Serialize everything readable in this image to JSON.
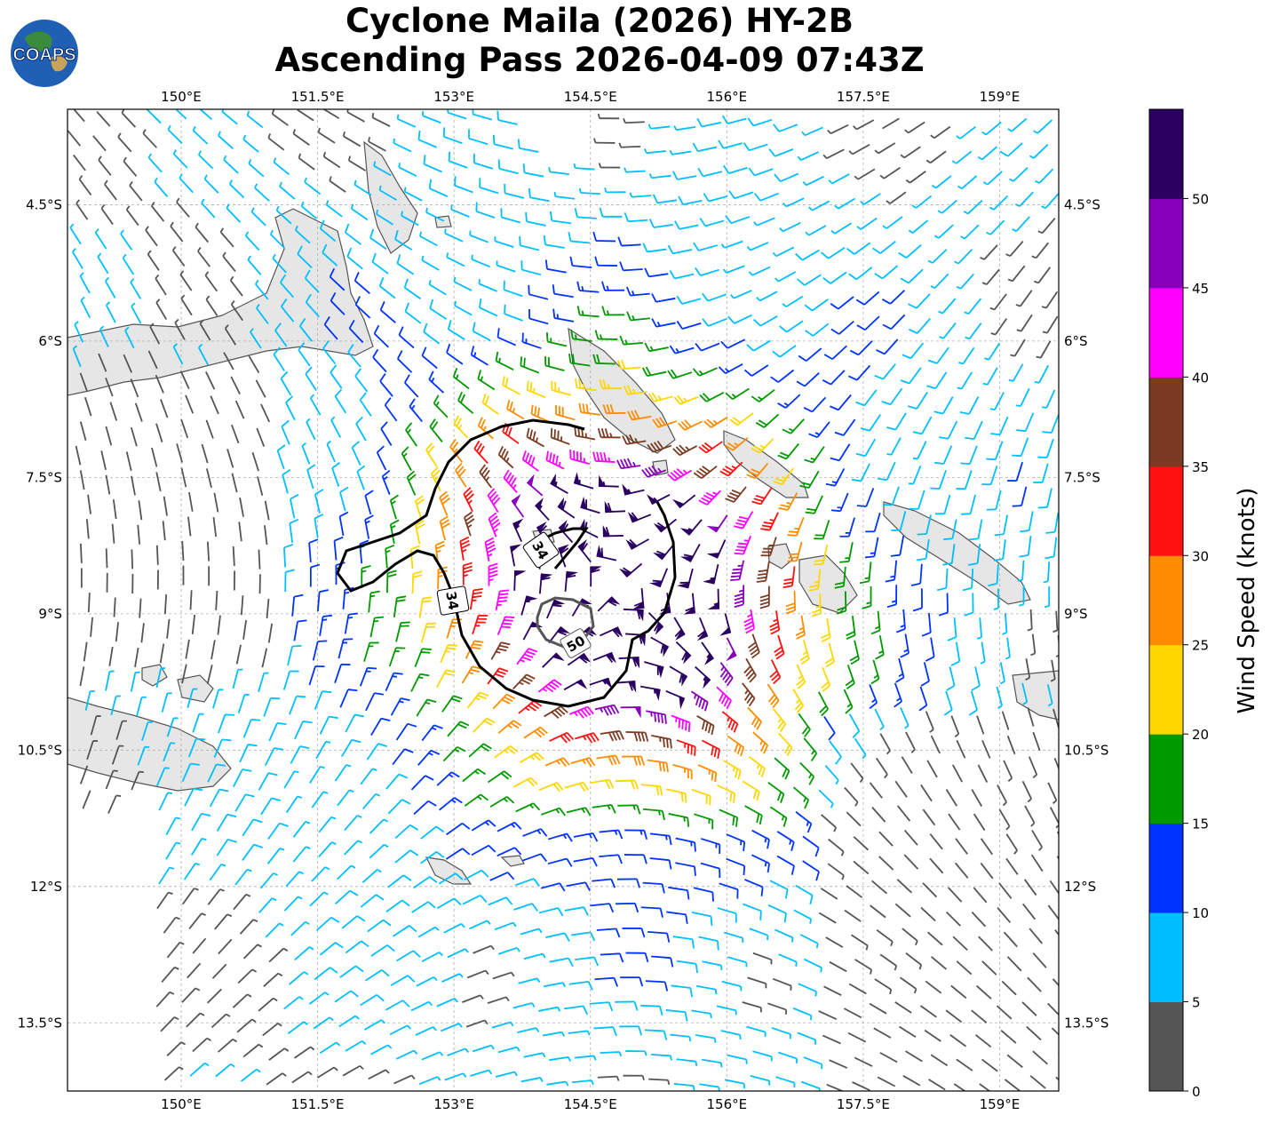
{
  "title": {
    "line1": "Cyclone Maila (2026) HY-2B",
    "line2": "Ascending Pass 2026-04-09 07:43Z"
  },
  "logo": {
    "text": "COAPS",
    "icon": "globe-icon"
  },
  "map": {
    "lon_range": [
      148.75,
      159.65
    ],
    "lat_range": [
      -14.25,
      -3.45
    ],
    "lon_ticks": [
      "150°E",
      "151.5°E",
      "153°E",
      "154.5°E",
      "156°E",
      "157.5°E",
      "159°E"
    ],
    "lat_ticks": [
      "4.5°S",
      "6°S",
      "7.5°S",
      "9°S",
      "10.5°S",
      "12°S",
      "13.5°S"
    ],
    "grid": true,
    "storm_center": {
      "lon": 154.85,
      "lat": -8.7
    },
    "contours": [
      {
        "label": "34",
        "kt": 34
      },
      {
        "label": "50",
        "kt": 50
      }
    ]
  },
  "colorbar": {
    "label": "Wind Speed (knots)",
    "ticks": [
      "0",
      "5",
      "10",
      "15",
      "20",
      "25",
      "30",
      "35",
      "40",
      "45",
      "50"
    ],
    "colors": [
      "#555555",
      "#00bfff",
      "#0033ff",
      "#009900",
      "#ffd700",
      "#ff8c00",
      "#ff1111",
      "#7b3b22",
      "#ff00ff",
      "#8800bb",
      "#2a0060"
    ]
  },
  "colors": {
    "land": "#e6e6e6",
    "coast": "#555555",
    "grid": "#b0b0b0",
    "contour": "#000000",
    "contour50": "#555555"
  }
}
